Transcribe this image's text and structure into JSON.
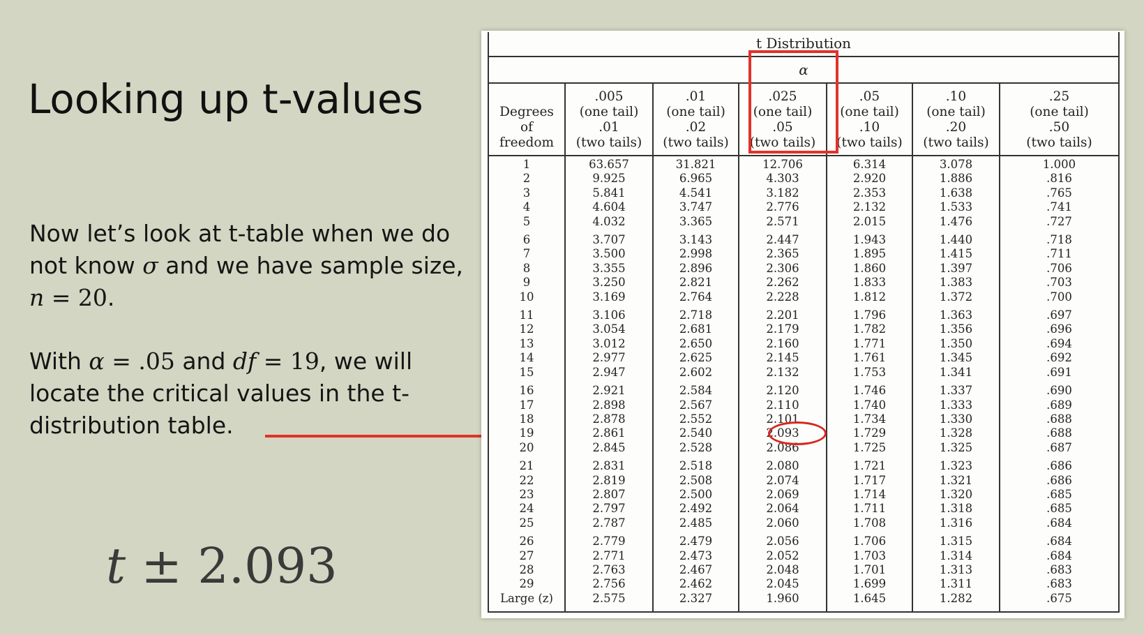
{
  "slide": {
    "title": "Looking up t-values",
    "para1": {
      "line1": "Now let’s look at t-table when we do",
      "line2_a": "not know ",
      "sigma": "σ",
      "line2_b": " and we have sample size,",
      "n": "n",
      "eq": " = 20",
      "dot": "."
    },
    "para2": {
      "with": "With ",
      "alpha": "α",
      "alpha_eq": " = .05",
      "and": " and ",
      "df": "df",
      "df_eq": " = 19",
      "rest1": ", we will",
      "line2": "locate the critical values in the t-",
      "line3": "distribution table."
    },
    "big_expr": {
      "t": "t",
      "pm": " ± 2.093"
    },
    "arrow_color": "#e0322a"
  },
  "table": {
    "title": "t Distribution",
    "alpha_symbol": "α",
    "header_df": [
      "Degrees",
      "of",
      "freedom"
    ],
    "columns": [
      {
        "one": ".005",
        "one_label": "(one tail)",
        "two": ".01",
        "two_label": "(two tails)",
        "values": [
          "63.657",
          "9.925",
          "5.841",
          "4.604",
          "4.032",
          "3.707",
          "3.500",
          "3.355",
          "3.250",
          "3.169",
          "3.106",
          "3.054",
          "3.012",
          "2.977",
          "2.947",
          "2.921",
          "2.898",
          "2.878",
          "2.861",
          "2.845",
          "2.831",
          "2.819",
          "2.807",
          "2.797",
          "2.787",
          "2.779",
          "2.771",
          "2.763",
          "2.756",
          "2.575"
        ]
      },
      {
        "one": ".01",
        "one_label": "(one tail)",
        "two": ".02",
        "two_label": "(two tails)",
        "values": [
          "31.821",
          "6.965",
          "4.541",
          "3.747",
          "3.365",
          "3.143",
          "2.998",
          "2.896",
          "2.821",
          "2.764",
          "2.718",
          "2.681",
          "2.650",
          "2.625",
          "2.602",
          "2.584",
          "2.567",
          "2.552",
          "2.540",
          "2.528",
          "2.518",
          "2.508",
          "2.500",
          "2.492",
          "2.485",
          "2.479",
          "2.473",
          "2.467",
          "2.462",
          "2.327"
        ]
      },
      {
        "one": ".025",
        "one_label": "(one tail)",
        "two": ".05",
        "two_label": "(two tails)",
        "values": [
          "12.706",
          "4.303",
          "3.182",
          "2.776",
          "2.571",
          "2.447",
          "2.365",
          "2.306",
          "2.262",
          "2.228",
          "2.201",
          "2.179",
          "2.160",
          "2.145",
          "2.132",
          "2.120",
          "2.110",
          "2.101",
          "2.093",
          "2.086",
          "2.080",
          "2.074",
          "2.069",
          "2.064",
          "2.060",
          "2.056",
          "2.052",
          "2.048",
          "2.045",
          "1.960"
        ]
      },
      {
        "one": ".05",
        "one_label": "(one tail)",
        "two": ".10",
        "two_label": "(two tails)",
        "values": [
          "6.314",
          "2.920",
          "2.353",
          "2.132",
          "2.015",
          "1.943",
          "1.895",
          "1.860",
          "1.833",
          "1.812",
          "1.796",
          "1.782",
          "1.771",
          "1.761",
          "1.753",
          "1.746",
          "1.740",
          "1.734",
          "1.729",
          "1.725",
          "1.721",
          "1.717",
          "1.714",
          "1.711",
          "1.708",
          "1.706",
          "1.703",
          "1.701",
          "1.699",
          "1.645"
        ]
      },
      {
        "one": ".10",
        "one_label": "(one tail)",
        "two": ".20",
        "two_label": "(two tails)",
        "values": [
          "3.078",
          "1.886",
          "1.638",
          "1.533",
          "1.476",
          "1.440",
          "1.415",
          "1.397",
          "1.383",
          "1.372",
          "1.363",
          "1.356",
          "1.350",
          "1.345",
          "1.341",
          "1.337",
          "1.333",
          "1.330",
          "1.328",
          "1.325",
          "1.323",
          "1.321",
          "1.320",
          "1.318",
          "1.316",
          "1.315",
          "1.314",
          "1.313",
          "1.311",
          "1.282"
        ]
      },
      {
        "one": ".25",
        "one_label": "(one tail)",
        "two": ".50",
        "two_label": "(two tails)",
        "values": [
          "1.000",
          ".816",
          ".765",
          ".741",
          ".727",
          ".718",
          ".711",
          ".706",
          ".703",
          ".700",
          ".697",
          ".696",
          ".694",
          ".692",
          ".691",
          ".690",
          ".689",
          ".688",
          ".688",
          ".687",
          ".686",
          ".686",
          ".685",
          ".685",
          ".684",
          ".684",
          ".684",
          ".683",
          ".683",
          ".675"
        ]
      }
    ],
    "df_values": [
      "1",
      "2",
      "3",
      "4",
      "5",
      "6",
      "7",
      "8",
      "9",
      "10",
      "11",
      "12",
      "13",
      "14",
      "15",
      "16",
      "17",
      "18",
      "19",
      "20",
      "21",
      "22",
      "23",
      "24",
      "25",
      "26",
      "27",
      "28",
      "29",
      "Large (z)"
    ],
    "highlight_color": "#e0322a"
  }
}
